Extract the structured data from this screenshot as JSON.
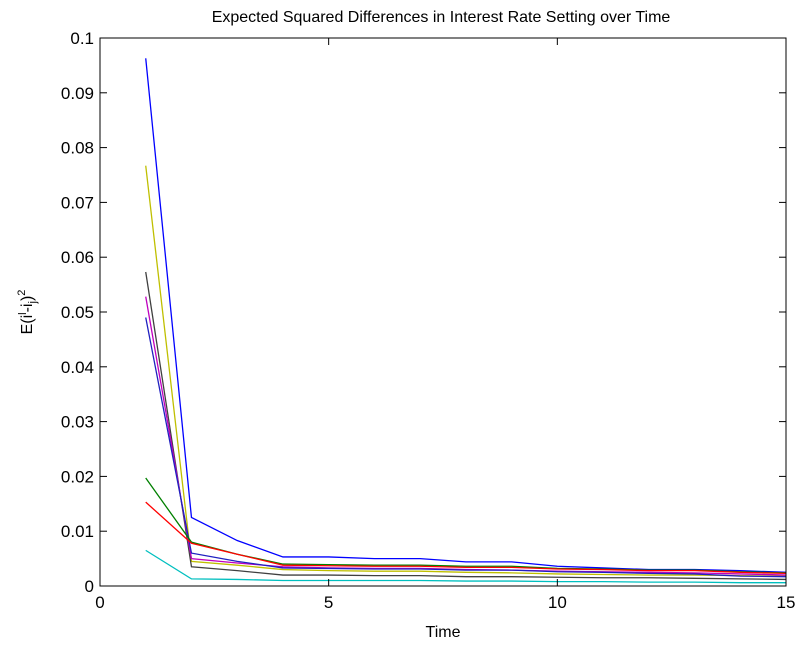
{
  "chart_data": {
    "type": "line",
    "title": "Expected Squared Differences in Interest Rate Setting over Time",
    "xlabel": "Time",
    "ylabel": {
      "base": "E(i",
      "sup1": "l",
      "mid": "-i",
      "sub": "j",
      "end": ")",
      "sup2": "2"
    },
    "xlim": [
      0,
      15
    ],
    "ylim": [
      0,
      0.1
    ],
    "xticks": [
      0,
      5,
      10,
      15
    ],
    "yticks": [
      0,
      0.01,
      0.02,
      0.03,
      0.04,
      0.05,
      0.06,
      0.07,
      0.08,
      0.09,
      0.1
    ],
    "grid": false,
    "legend": "none",
    "x": [
      1,
      2,
      3,
      4,
      5,
      6,
      7,
      8,
      9,
      10,
      11,
      12,
      13,
      14,
      15
    ],
    "series": [
      {
        "color": "#0000ff",
        "values": [
          0.0963,
          0.0125,
          0.0083,
          0.0053,
          0.0053,
          0.005,
          0.005,
          0.0044,
          0.0044,
          0.0036,
          0.0033,
          0.003,
          0.003,
          0.0028,
          0.0025
        ]
      },
      {
        "color": "#bfbf00",
        "values": [
          0.0767,
          0.0045,
          0.0038,
          0.003,
          0.0028,
          0.0027,
          0.0027,
          0.0025,
          0.0024,
          0.0022,
          0.0021,
          0.002,
          0.002,
          0.0019,
          0.0018
        ]
      },
      {
        "color": "#404040",
        "values": [
          0.0573,
          0.0035,
          0.0028,
          0.002,
          0.002,
          0.0019,
          0.0019,
          0.0017,
          0.0017,
          0.0016,
          0.0015,
          0.0015,
          0.0014,
          0.0013,
          0.0012
        ]
      },
      {
        "color": "#bf00bf",
        "values": [
          0.0528,
          0.005,
          0.0042,
          0.0035,
          0.0033,
          0.0032,
          0.0032,
          0.003,
          0.0029,
          0.0027,
          0.0026,
          0.0025,
          0.0024,
          0.0022,
          0.002
        ]
      },
      {
        "color": "#2020c0",
        "values": [
          0.049,
          0.006,
          0.0045,
          0.0033,
          0.0032,
          0.0031,
          0.0031,
          0.0029,
          0.0029,
          0.0026,
          0.0025,
          0.0023,
          0.0022,
          0.0018,
          0.0017
        ]
      },
      {
        "color": "#008000",
        "values": [
          0.0197,
          0.008,
          0.0058,
          0.004,
          0.0039,
          0.0038,
          0.0038,
          0.0036,
          0.0036,
          0.0032,
          0.0031,
          0.0029,
          0.0029,
          0.0026,
          0.0024
        ]
      },
      {
        "color": "#ff0000",
        "values": [
          0.0153,
          0.0078,
          0.0058,
          0.0038,
          0.0037,
          0.0036,
          0.0036,
          0.0034,
          0.0034,
          0.0031,
          0.003,
          0.0028,
          0.0028,
          0.0025,
          0.0023
        ]
      },
      {
        "color": "#00bfbf",
        "values": [
          0.0065,
          0.0013,
          0.0012,
          0.001,
          0.001,
          0.001,
          0.001,
          0.0009,
          0.0009,
          0.0008,
          0.0008,
          0.0007,
          0.0007,
          0.0006,
          0.0006
        ]
      }
    ]
  }
}
